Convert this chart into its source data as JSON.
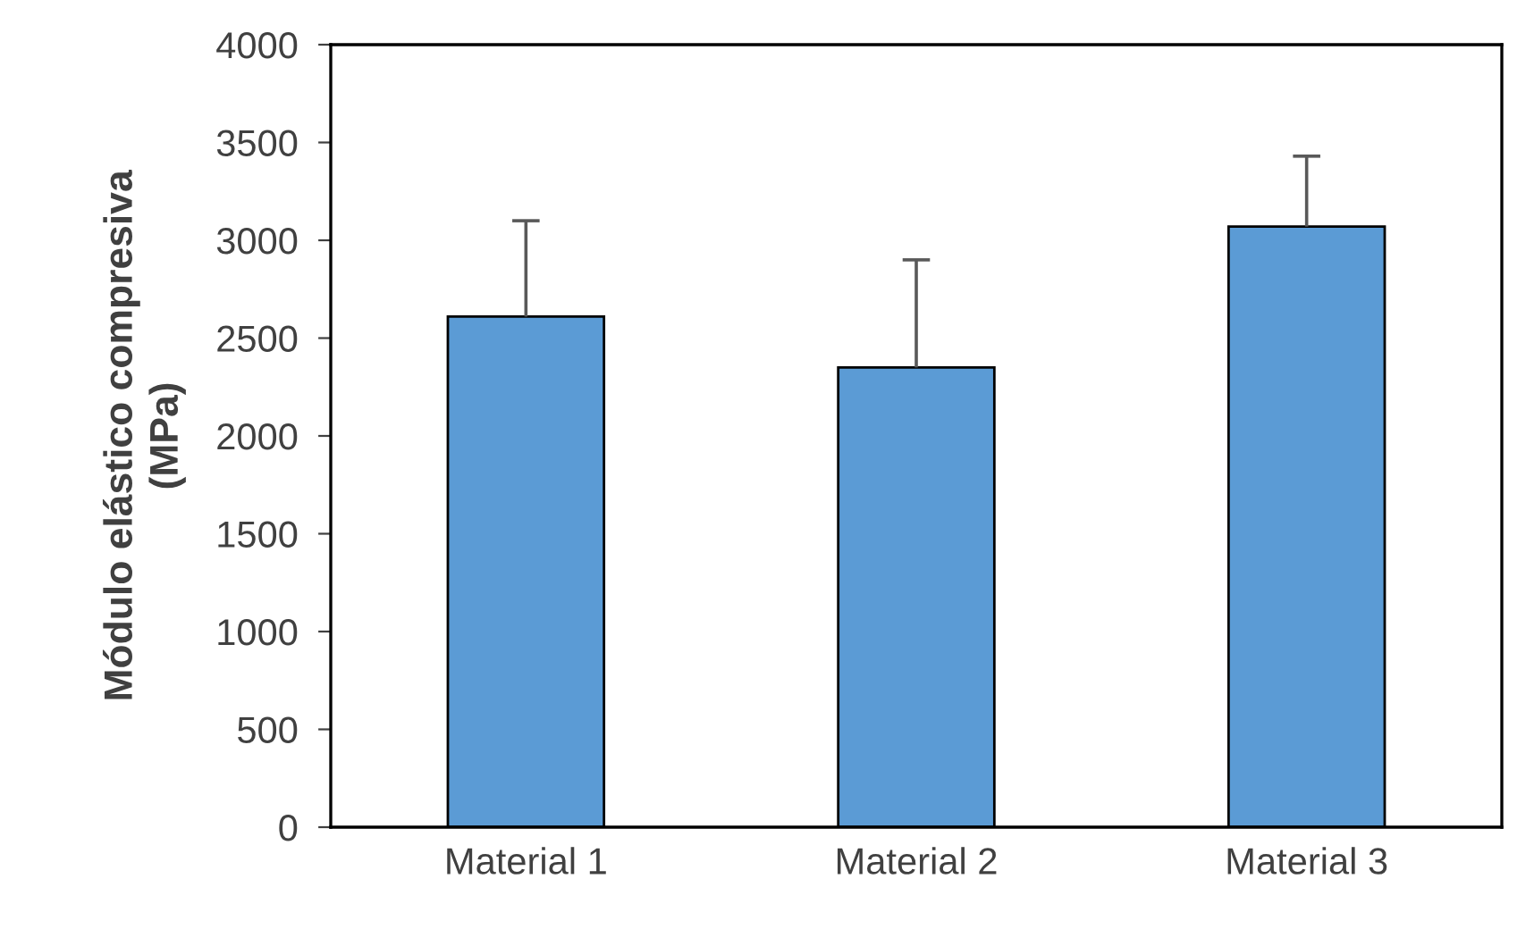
{
  "chart_data": {
    "type": "bar",
    "ylabel": "Módulo elástico compresiva\n(MPa)",
    "categories": [
      "Material 1",
      "Material 2",
      "Material 3"
    ],
    "values": [
      2610,
      2350,
      3070
    ],
    "errors": [
      [
        2610,
        3100
      ],
      [
        2350,
        2900
      ],
      [
        3070,
        3430
      ]
    ],
    "color": "#5b9bd5",
    "ylim": [
      0,
      4000
    ],
    "yticks": [
      0,
      500,
      1000,
      1500,
      2000,
      2500,
      3000,
      3500,
      4000
    ],
    "grid": false
  }
}
